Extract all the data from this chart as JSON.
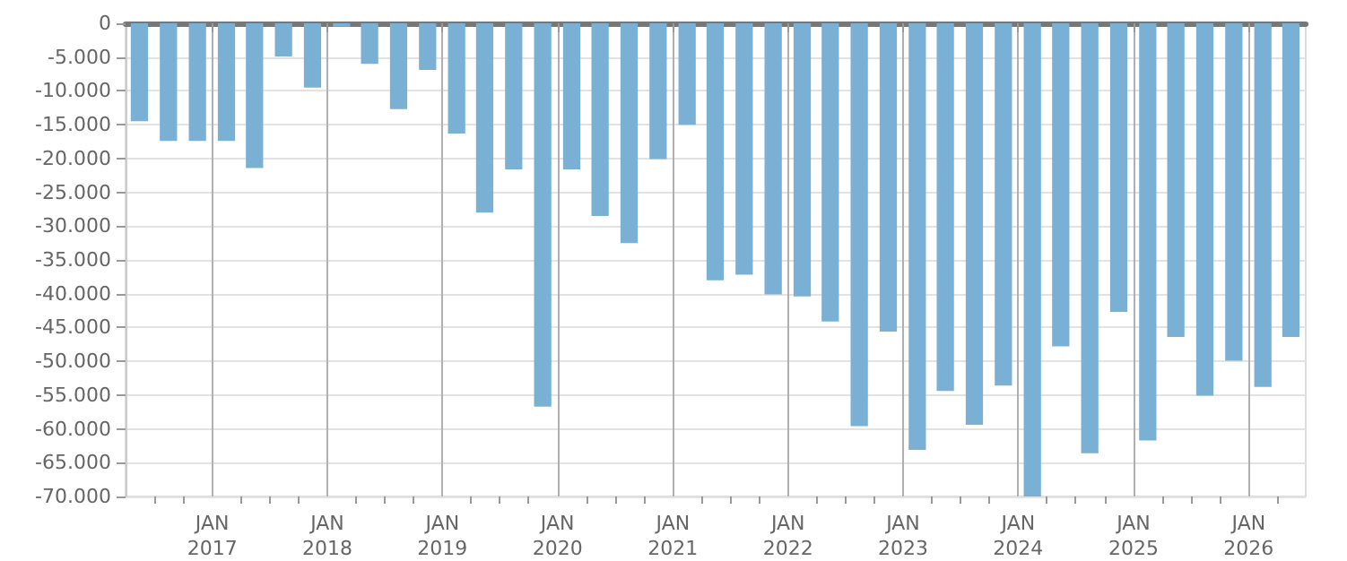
{
  "chart_data": {
    "type": "bar",
    "color": "#7ab0d4",
    "grid": true,
    "x": [
      "2016-05-15",
      "2016-08-15",
      "2016-11-15",
      "2017-02-15",
      "2017-05-15",
      "2017-08-15",
      "2017-11-15",
      "2018-02-15",
      "2018-05-15",
      "2018-08-15",
      "2018-11-15",
      "2019-02-15",
      "2019-05-15",
      "2019-08-15",
      "2019-11-15",
      "2020-02-15",
      "2020-05-15",
      "2020-08-15",
      "2020-11-15",
      "2021-02-15",
      "2021-05-15",
      "2021-08-15",
      "2021-11-15",
      "2022-02-15",
      "2022-05-15",
      "2022-08-15",
      "2022-11-15",
      "2023-02-15",
      "2023-05-15",
      "2023-08-15",
      "2023-11-15",
      "2024-02-15",
      "2024-05-15",
      "2024-08-15",
      "2024-11-15",
      "2025-02-15",
      "2025-05-15",
      "2025-08-15",
      "2025-11-15",
      "2026-02-15",
      "2026-05-15"
    ],
    "values": [
      -14500,
      -17400,
      -17400,
      -17400,
      -21400,
      -4900,
      -9500,
      -500,
      -6000,
      -12700,
      -6900,
      -16300,
      -28000,
      -21600,
      -56700,
      -21600,
      -28500,
      -32500,
      -20100,
      -15000,
      -38000,
      -37200,
      -40100,
      -40400,
      -44100,
      -59600,
      -45600,
      -63100,
      -54400,
      -59400,
      -53600,
      -70000,
      -47800,
      -63600,
      -42700,
      -61700,
      -46400,
      -55100,
      -49900,
      -53800,
      -46400
    ],
    "xlim": [
      "2016-04",
      "2026-07"
    ],
    "xticks": [
      {
        "value": "2016-07",
        "label": null
      },
      {
        "value": "2016-10",
        "label": null
      },
      {
        "value": "2017-01",
        "label": "JAN\n2017"
      },
      {
        "value": "2017-04",
        "label": null
      },
      {
        "value": "2017-07",
        "label": null
      },
      {
        "value": "2017-10",
        "label": null
      },
      {
        "value": "2018-01",
        "label": "JAN\n2018"
      },
      {
        "value": "2018-04",
        "label": null
      },
      {
        "value": "2018-07",
        "label": null
      },
      {
        "value": "2018-10",
        "label": null
      },
      {
        "value": "2019-01",
        "label": "JAN\n2019"
      },
      {
        "value": "2019-04",
        "label": null
      },
      {
        "value": "2019-07",
        "label": null
      },
      {
        "value": "2019-10",
        "label": null
      },
      {
        "value": "2020-01",
        "label": "JAN\n2020"
      },
      {
        "value": "2020-04",
        "label": null
      },
      {
        "value": "2020-07",
        "label": null
      },
      {
        "value": "2020-10",
        "label": null
      },
      {
        "value": "2021-01",
        "label": "JAN\n2021"
      },
      {
        "value": "2021-04",
        "label": null
      },
      {
        "value": "2021-07",
        "label": null
      },
      {
        "value": "2021-10",
        "label": null
      },
      {
        "value": "2022-01",
        "label": "JAN\n2022"
      },
      {
        "value": "2022-04",
        "label": null
      },
      {
        "value": "2022-07",
        "label": null
      },
      {
        "value": "2022-10",
        "label": null
      },
      {
        "value": "2023-01",
        "label": "JAN\n2023"
      },
      {
        "value": "2023-04",
        "label": null
      },
      {
        "value": "2023-07",
        "label": null
      },
      {
        "value": "2023-10",
        "label": null
      },
      {
        "value": "2024-01",
        "label": "JAN\n2024"
      },
      {
        "value": "2024-04",
        "label": null
      },
      {
        "value": "2024-07",
        "label": null
      },
      {
        "value": "2024-10",
        "label": null
      },
      {
        "value": "2025-01",
        "label": "JAN\n2025"
      },
      {
        "value": "2025-04",
        "label": null
      },
      {
        "value": "2025-07",
        "label": null
      },
      {
        "value": "2025-10",
        "label": null
      },
      {
        "value": "2026-01",
        "label": "JAN\n2026"
      },
      {
        "value": "2026-04",
        "label": null
      }
    ],
    "ylim": [
      -70000,
      0
    ],
    "yticks": [
      {
        "value": -70000,
        "label": "-70.000"
      },
      {
        "value": -65000,
        "label": "-65.000"
      },
      {
        "value": -60000,
        "label": "-60.000"
      },
      {
        "value": -55000,
        "label": "-55.000"
      },
      {
        "value": -50000,
        "label": "-50.000"
      },
      {
        "value": -45000,
        "label": "-45.000"
      },
      {
        "value": -40000,
        "label": "-40.000"
      },
      {
        "value": -35000,
        "label": "-35.000"
      },
      {
        "value": -30000,
        "label": "-30.000"
      },
      {
        "value": -25000,
        "label": "-25.000"
      },
      {
        "value": -20000,
        "label": "-20.000"
      },
      {
        "value": -15000,
        "label": "-15.000"
      },
      {
        "value": -10000,
        "label": "-10.000"
      },
      {
        "value": -5000,
        "label": "-5.000"
      },
      0
    ]
  }
}
